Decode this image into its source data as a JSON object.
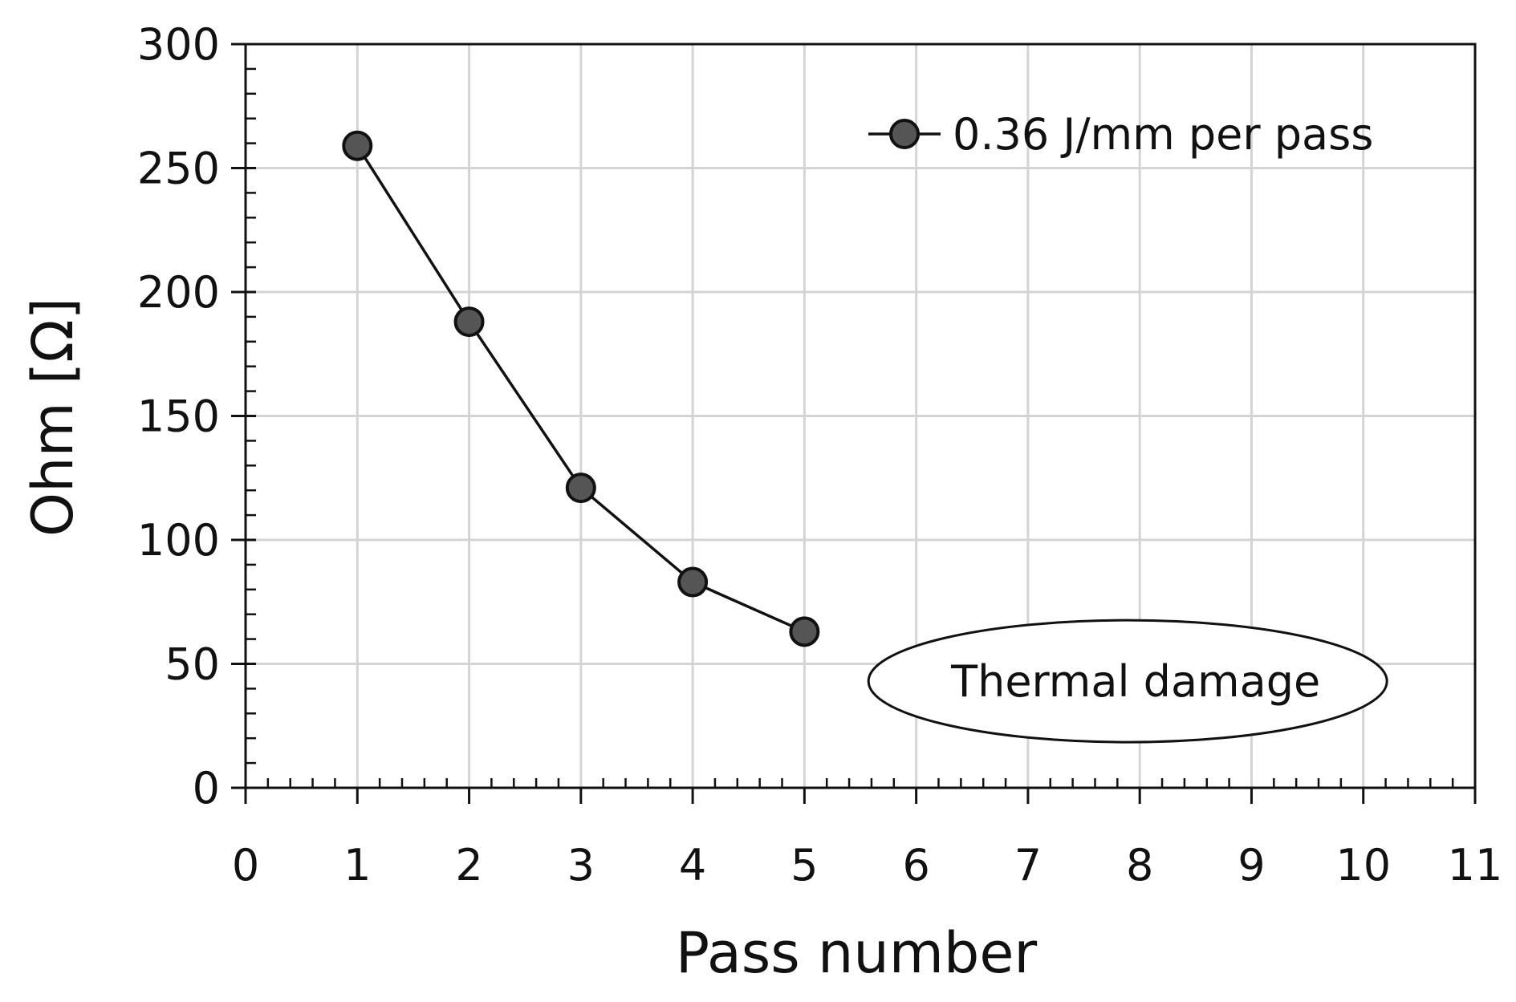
{
  "chart_data": {
    "type": "line",
    "xlabel": "Pass number",
    "ylabel": "Ohm [Ω]",
    "xlim": [
      0,
      11
    ],
    "ylim": [
      0,
      300
    ],
    "x_ticks": [
      0,
      1,
      2,
      3,
      4,
      5,
      6,
      7,
      8,
      9,
      10,
      11
    ],
    "y_ticks": [
      0,
      50,
      100,
      150,
      200,
      250,
      300
    ],
    "grid": true,
    "legend_position": "top-right",
    "series": [
      {
        "name": "0.36 J/mm per pass",
        "x": [
          1,
          2,
          3,
          4,
          5
        ],
        "y": [
          259,
          188,
          121,
          83,
          63
        ],
        "color": "#555555"
      }
    ],
    "annotations": [
      {
        "text": "Thermal damage",
        "x": 8.0,
        "y": 43,
        "shape": "ellipse"
      }
    ]
  }
}
